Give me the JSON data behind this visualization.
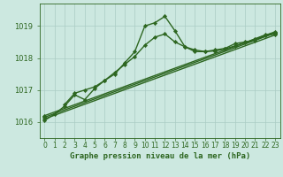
{
  "background_color": "#cce8e0",
  "grid_color": "#aaccc4",
  "line_color": "#2d6620",
  "title": "Graphe pression niveau de la mer (hPa)",
  "title_fontsize": 6.5,
  "ylabel_fontsize": 6,
  "xlabel_fontsize": 5.5,
  "xlim": [
    -0.5,
    23.5
  ],
  "ylim": [
    1015.5,
    1019.7
  ],
  "yticks": [
    1016,
    1017,
    1018,
    1019
  ],
  "xticks": [
    0,
    1,
    2,
    3,
    4,
    5,
    6,
    7,
    8,
    9,
    10,
    11,
    12,
    13,
    14,
    15,
    16,
    17,
    18,
    19,
    20,
    21,
    22,
    23
  ],
  "series": [
    {
      "x": [
        0,
        1,
        2,
        3,
        4,
        5,
        6,
        7,
        8,
        9,
        10,
        11,
        12,
        13,
        14,
        15,
        16,
        17,
        18,
        19,
        20,
        21,
        22,
        23
      ],
      "y": [
        1016.05,
        1016.25,
        1016.5,
        1016.85,
        1016.7,
        1017.05,
        1017.3,
        1017.5,
        1017.85,
        1018.2,
        1019.0,
        1019.1,
        1019.3,
        1018.85,
        1018.35,
        1018.2,
        1018.2,
        1018.25,
        1018.3,
        1018.45,
        1018.5,
        1018.55,
        1018.7,
        1018.75
      ],
      "marker": "D",
      "markersize": 2.2,
      "linewidth": 1.0
    },
    {
      "x": [
        2,
        3,
        4,
        5,
        6,
        7,
        8,
        9,
        10,
        11,
        12,
        13,
        14,
        15,
        16,
        17,
        18,
        19,
        20,
        21,
        22,
        23
      ],
      "y": [
        1016.55,
        1016.9,
        1017.0,
        1017.1,
        1017.3,
        1017.55,
        1017.8,
        1018.05,
        1018.4,
        1018.65,
        1018.75,
        1018.5,
        1018.35,
        1018.25,
        1018.2,
        1018.22,
        1018.28,
        1018.38,
        1018.48,
        1018.6,
        1018.72,
        1018.78
      ],
      "marker": "D",
      "markersize": 2.2,
      "linewidth": 1.0
    },
    {
      "x": [
        0,
        23
      ],
      "y": [
        1016.1,
        1018.72
      ],
      "marker": "D",
      "markersize": 2.2,
      "linewidth": 1.0
    },
    {
      "x": [
        0,
        23
      ],
      "y": [
        1016.15,
        1018.78
      ],
      "marker": "D",
      "markersize": 2.2,
      "linewidth": 1.0
    },
    {
      "x": [
        0,
        23
      ],
      "y": [
        1016.2,
        1018.82
      ],
      "marker": "D",
      "markersize": 2.2,
      "linewidth": 1.0
    }
  ]
}
